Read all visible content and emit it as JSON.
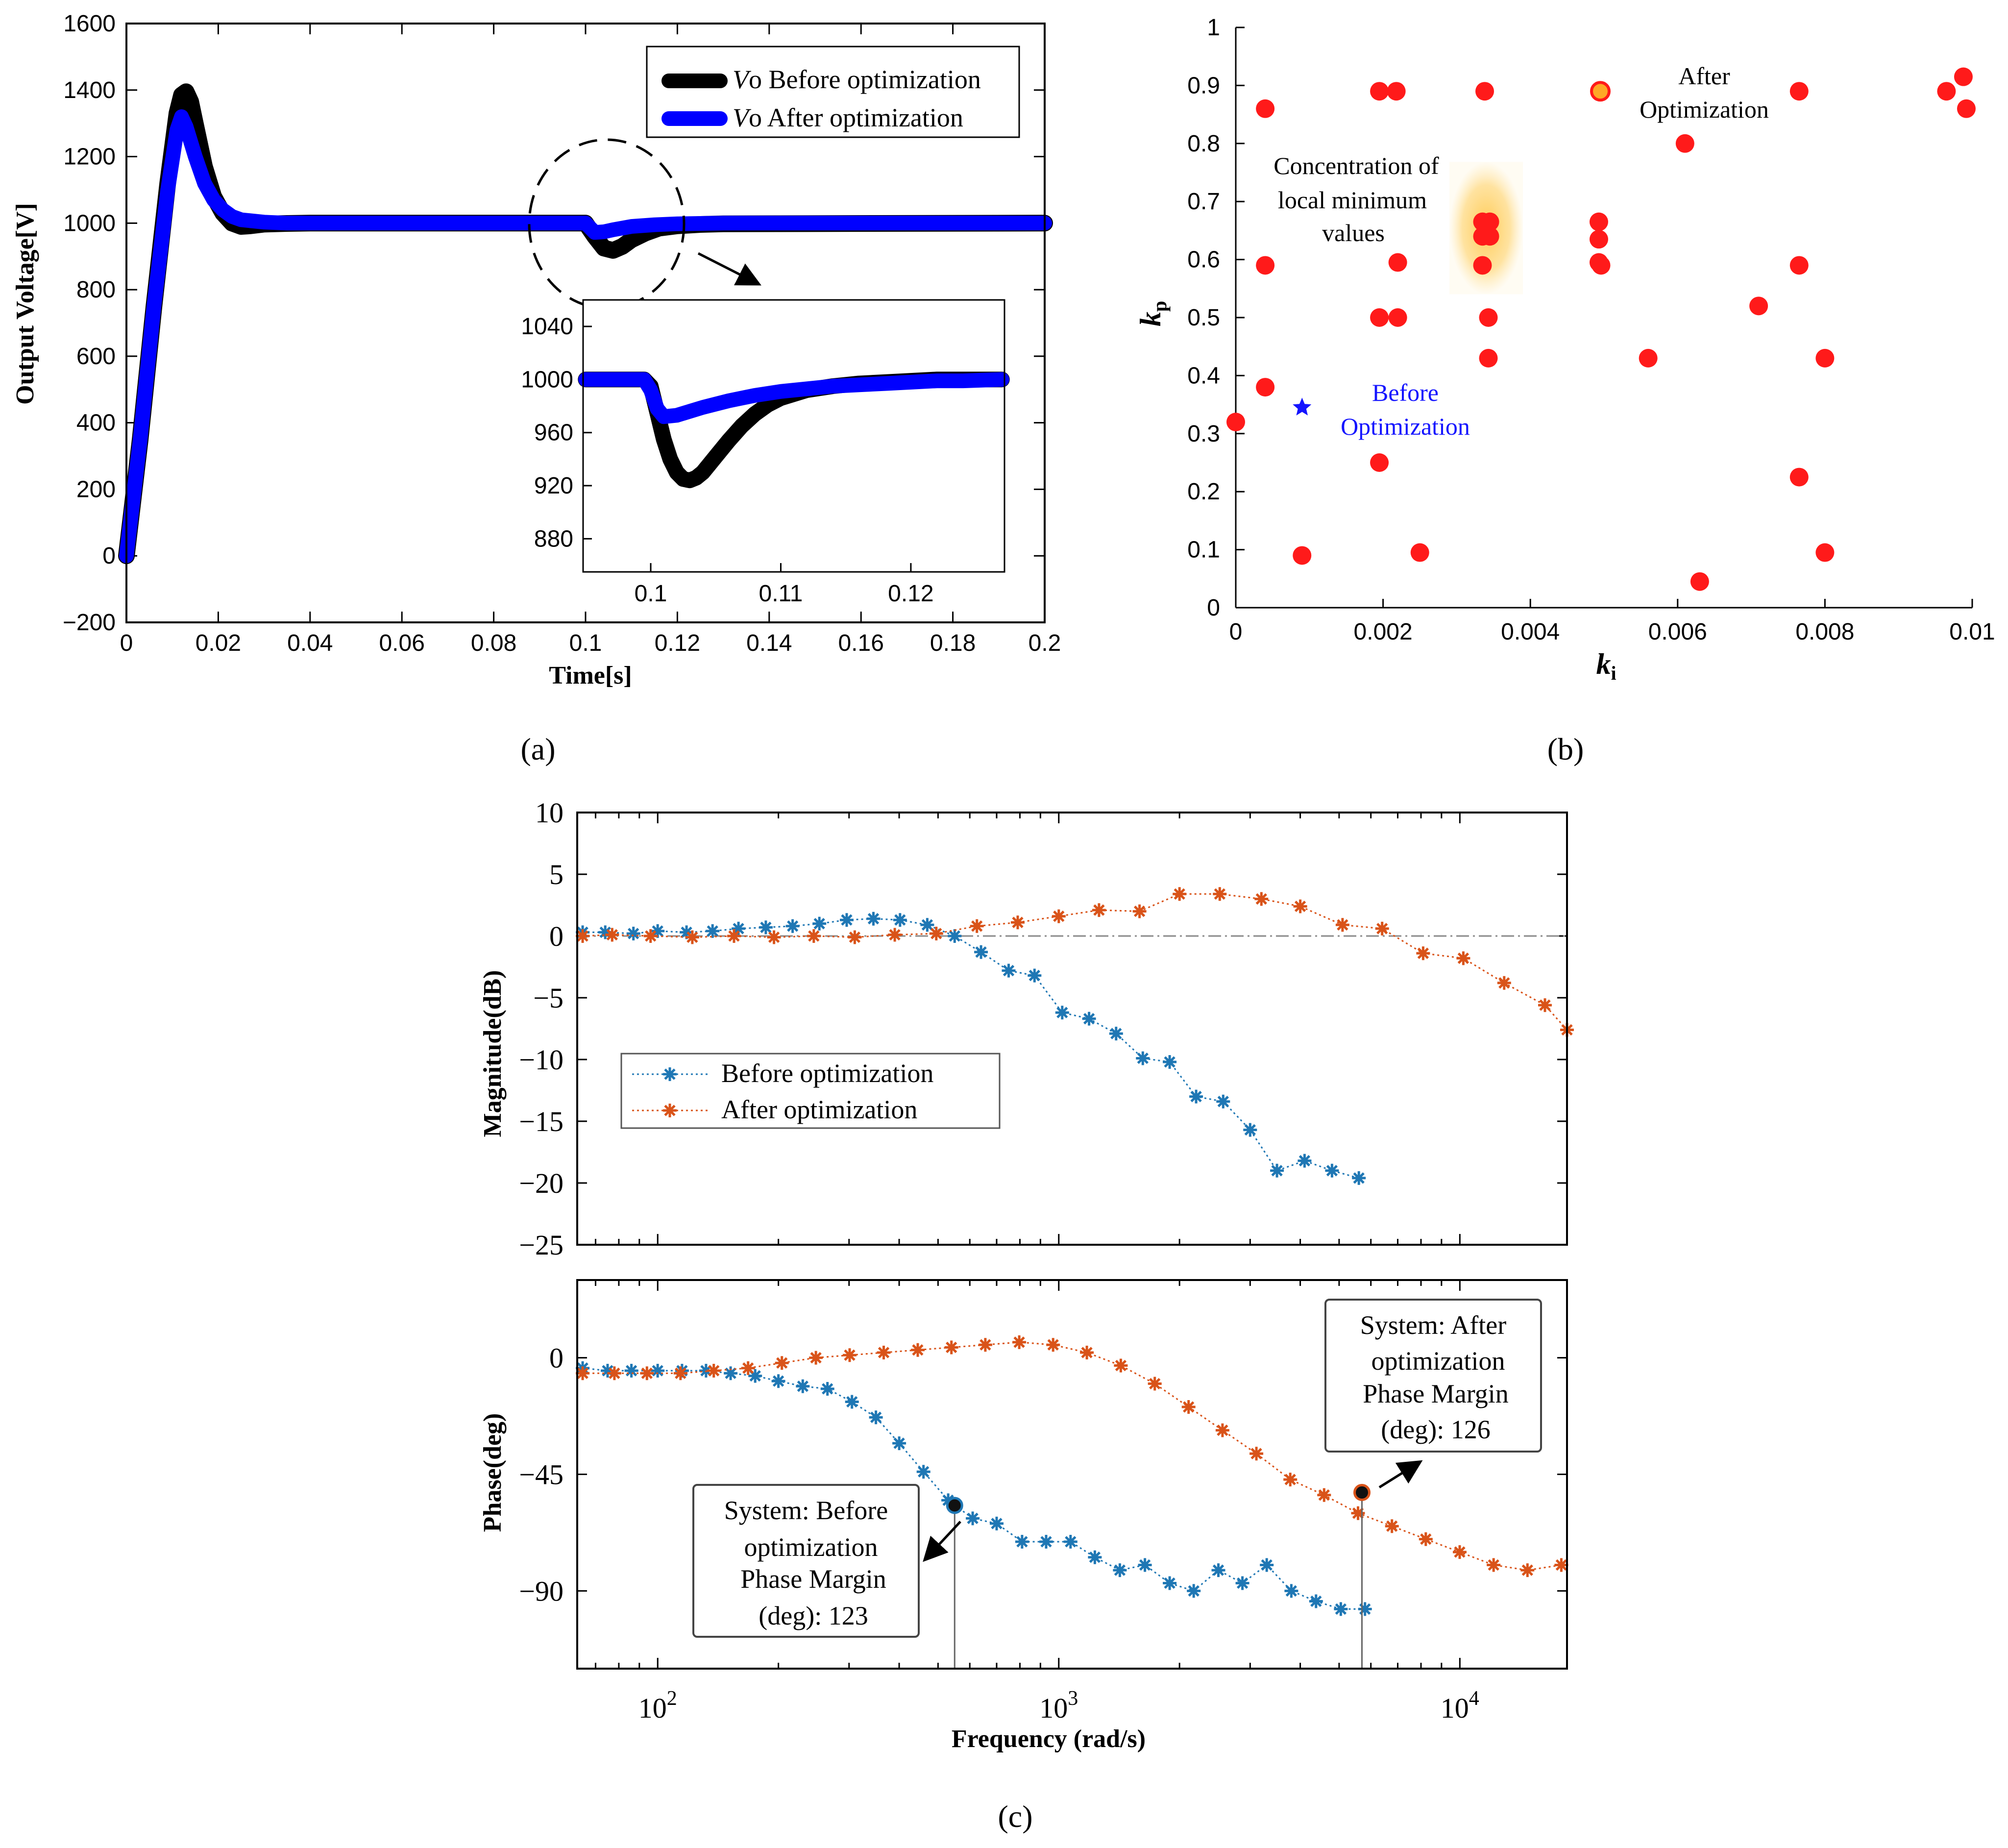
{
  "chart_data": [
    {
      "panel": "a",
      "panel_label": "(a)",
      "type": "line",
      "xlabel": "Time[s]",
      "ylabel": "Output Voltage[V]",
      "xlim": [
        0,
        0.2
      ],
      "ylim": [
        -200,
        1600
      ],
      "xticks": [
        0,
        0.02,
        0.04,
        0.06,
        0.08,
        0.1,
        0.12,
        0.14,
        0.16,
        0.18,
        0.2
      ],
      "xtick_labels": [
        "0",
        "0.02",
        "0.04",
        "0.06",
        "0.08",
        "0.1",
        "0.12",
        "0.14",
        "0.16",
        "0.18",
        "0.2"
      ],
      "yticks": [
        -200,
        0,
        200,
        400,
        600,
        800,
        1000,
        1200,
        1400,
        1600
      ],
      "ytick_labels": [
        "−200",
        "0",
        "200",
        "400",
        "600",
        "800",
        "1000",
        "1200",
        "1400",
        "1600"
      ],
      "legend_position": "top-right",
      "series": [
        {
          "name": "Vo Before optimization",
          "legend_italic": "V",
          "legend_rest": "o Before optimization",
          "color": "#000000",
          "x": [
            0,
            0.003,
            0.006,
            0.009,
            0.011,
            0.012,
            0.013,
            0.014,
            0.015,
            0.017,
            0.019,
            0.021,
            0.023,
            0.025,
            0.027,
            0.03,
            0.035,
            0.04,
            0.06,
            0.08,
            0.1,
            0.1,
            0.102,
            0.104,
            0.106,
            0.108,
            0.11,
            0.113,
            0.116,
            0.12,
            0.125,
            0.13,
            0.2
          ],
          "y": [
            0,
            350,
            750,
            1120,
            1330,
            1385,
            1395,
            1365,
            1300,
            1170,
            1080,
            1030,
            1000,
            990,
            992,
            997,
            999,
            1000,
            1000,
            1000,
            1000,
            1000,
            960,
            925,
            918,
            930,
            950,
            970,
            985,
            992,
            996,
            998,
            1000
          ]
        },
        {
          "name": "Vo After optimization",
          "legend_italic": "V",
          "legend_rest": "o After optimization",
          "color": "#0000ff",
          "x": [
            0,
            0.003,
            0.006,
            0.009,
            0.011,
            0.012,
            0.013,
            0.015,
            0.017,
            0.019,
            0.021,
            0.023,
            0.025,
            0.03,
            0.035,
            0.04,
            0.06,
            0.08,
            0.1,
            0.1,
            0.102,
            0.104,
            0.106,
            0.108,
            0.11,
            0.115,
            0.12,
            0.13,
            0.2
          ],
          "y": [
            0,
            350,
            750,
            1100,
            1280,
            1320,
            1290,
            1200,
            1120,
            1070,
            1040,
            1020,
            1010,
            1003,
            1000,
            1000,
            1000,
            1000,
            1000,
            1000,
            972,
            974,
            980,
            985,
            990,
            995,
            998,
            1000,
            1000
          ]
        }
      ],
      "inset": {
        "xlim": [
          0.0948,
          0.1272
        ],
        "ylim": [
          855,
          1060
        ],
        "xticks": [
          0.1,
          0.11,
          0.12
        ],
        "xtick_labels": [
          "0.1",
          "0.11",
          "0.12"
        ],
        "yticks": [
          880,
          920,
          960,
          1000,
          1040
        ],
        "ytick_labels": [
          "880",
          "920",
          "960",
          "1000",
          "1040"
        ],
        "series": [
          {
            "name": "Vo Before optimization",
            "color": "#000000",
            "x": [
              0.095,
              0.0995,
              0.1,
              0.1005,
              0.101,
              0.1015,
              0.102,
              0.1025,
              0.103,
              0.1035,
              0.104,
              0.1045,
              0.105,
              0.106,
              0.107,
              0.108,
              0.109,
              0.11,
              0.112,
              0.114,
              0.116,
              0.118,
              0.12,
              0.122,
              0.124,
              0.127
            ],
            "y": [
              1000,
              1000,
              995,
              975,
              955,
              940,
              930,
              925,
              924,
              926,
              930,
              936,
              942,
              954,
              965,
              974,
              981,
              986,
              992,
              995,
              997,
              998,
              999,
              1000,
              1000,
              1000
            ]
          },
          {
            "name": "Vo After optimization",
            "color": "#0000ff",
            "x": [
              0.095,
              0.0995,
              0.1,
              0.1005,
              0.101,
              0.102,
              0.103,
              0.104,
              0.106,
              0.108,
              0.11,
              0.112,
              0.114,
              0.116,
              0.118,
              0.12,
              0.122,
              0.124,
              0.127
            ],
            "y": [
              1000,
              1000,
              992,
              978,
              972,
              973,
              976,
              979,
              984,
              988,
              991,
              993,
              995,
              996,
              997,
              998,
              999,
              999,
              1000
            ]
          }
        ]
      }
    },
    {
      "panel": "b",
      "panel_label": "(b)",
      "type": "scatter",
      "xlabel_main": "k",
      "xlabel_sub": "i",
      "ylabel_main": "k",
      "ylabel_sub": "p",
      "xlim": [
        0,
        0.01
      ],
      "ylim": [
        0,
        1
      ],
      "xticks": [
        0,
        0.002,
        0.004,
        0.006,
        0.008,
        0.01
      ],
      "xtick_labels": [
        "0",
        "0.002",
        "0.004",
        "0.006",
        "0.008",
        "0.01"
      ],
      "yticks": [
        0,
        0.1,
        0.2,
        0.3,
        0.4,
        0.5,
        0.6,
        0.7,
        0.8,
        0.9,
        1
      ],
      "ytick_labels": [
        "0",
        "0.1",
        "0.2",
        "0.3",
        "0.4",
        "0.5",
        "0.6",
        "0.7",
        "0.8",
        "0.9",
        "1"
      ],
      "red_points": [
        [
          0.0004,
          0.86
        ],
        [
          0.00195,
          0.89
        ],
        [
          0.00218,
          0.89
        ],
        [
          0.00338,
          0.89
        ],
        [
          0.00495,
          0.89
        ],
        [
          0.00765,
          0.89
        ],
        [
          0.00965,
          0.89
        ],
        [
          0.00988,
          0.915
        ],
        [
          0.00992,
          0.86
        ],
        [
          0.0061,
          0.8
        ],
        [
          0.0004,
          0.59
        ],
        [
          0.0022,
          0.595
        ],
        [
          0.00335,
          0.59
        ],
        [
          0.00335,
          0.665
        ],
        [
          0.00345,
          0.665
        ],
        [
          0.00335,
          0.64
        ],
        [
          0.00345,
          0.64
        ],
        [
          0.0034,
          0.655
        ],
        [
          0.00493,
          0.665
        ],
        [
          0.00493,
          0.635
        ],
        [
          0.00493,
          0.595
        ],
        [
          0.00496,
          0.59
        ],
        [
          0.00765,
          0.59
        ],
        [
          0.00195,
          0.5
        ],
        [
          0.0022,
          0.5
        ],
        [
          0.00343,
          0.5
        ],
        [
          0.0071,
          0.52
        ],
        [
          0.00343,
          0.43
        ],
        [
          0.0056,
          0.43
        ],
        [
          0.008,
          0.43
        ],
        [
          0.0004,
          0.38
        ],
        [
          0.0,
          0.32
        ],
        [
          0.00195,
          0.25
        ],
        [
          0.00765,
          0.225
        ],
        [
          0.0009,
          0.09
        ],
        [
          0.0025,
          0.095
        ],
        [
          0.0063,
          0.045
        ],
        [
          0.008,
          0.095
        ]
      ],
      "before_point": [
        0.0009,
        0.345
      ],
      "after_point": [
        0.00495,
        0.89
      ],
      "highlight_center": [
        0.0034,
        0.65
      ],
      "annotations": {
        "after": [
          "After",
          "Optimization"
        ],
        "before": [
          "Before",
          "Optimization"
        ],
        "concentration": [
          "Concentration of",
          "local minimum",
          "values"
        ]
      },
      "colors": {
        "red": "#ff1a1a",
        "before": "#1414ff",
        "after": "#ffa726",
        "highlight": "#ffc84a",
        "before_text": "#1414ff"
      }
    },
    {
      "panel": "c",
      "panel_label": "(c)",
      "type": "line",
      "xlabel": "Frequency  (rad/s)",
      "xscale": "log",
      "xlim": [
        63,
        18500
      ],
      "xtick_base": "10",
      "xtick_exponents": [
        "2",
        "3",
        "4"
      ],
      "xtick_values": [
        100,
        1000,
        10000
      ],
      "magnitude": {
        "ylabel": "Magnitude(dB)",
        "ylim": [
          -25,
          10
        ],
        "yticks": [
          -25,
          -20,
          -15,
          -10,
          -5,
          0,
          5,
          10
        ],
        "ytick_labels": [
          "−25",
          "−20",
          "−15",
          "−10",
          "−5",
          "0",
          "5",
          "10"
        ],
        "legend": [
          "Before optimization",
          "After optimization"
        ],
        "legend_position": "lower-left",
        "before": {
          "x": [
            65,
            74,
            87,
            100,
            118,
            137,
            159,
            186,
            217,
            253,
            296,
            345,
            402,
            470,
            550,
            640,
            750,
            870,
            1020,
            1190,
            1390,
            1620,
            1890,
            2200,
            2570,
            3000,
            3500,
            4100,
            4800,
            5600
          ],
          "y": [
            0.3,
            0.3,
            0.2,
            0.4,
            0.3,
            0.4,
            0.6,
            0.7,
            0.8,
            1.0,
            1.3,
            1.4,
            1.3,
            0.9,
            0.0,
            -1.3,
            -2.8,
            -3.2,
            -6.2,
            -6.7,
            -7.9,
            -9.9,
            -10.2,
            -13.0,
            -13.4,
            -15.7,
            -19.0,
            -18.2,
            -19.0,
            -19.6
          ]
        },
        "after": {
          "x": [
            65,
            77,
            96,
            122,
            155,
            195,
            245,
            310,
            390,
            495,
            625,
            790,
            1000,
            1260,
            1590,
            2000,
            2520,
            3200,
            4000,
            5100,
            6400,
            8100,
            10200,
            12900,
            16300,
            18500
          ],
          "y": [
            0.0,
            0.1,
            0.0,
            -0.1,
            0.0,
            -0.1,
            0.0,
            -0.1,
            0.1,
            0.2,
            0.8,
            1.1,
            1.6,
            2.1,
            2.0,
            3.4,
            3.4,
            3.0,
            2.4,
            0.9,
            0.6,
            -1.4,
            -1.8,
            -3.8,
            -5.6,
            -7.6
          ]
        }
      },
      "phase": {
        "ylabel": "Phase(deg)",
        "ylim": [
          -120,
          30
        ],
        "yticks": [
          -90,
          -45,
          0
        ],
        "ytick_labels": [
          "−90",
          "−45",
          "0"
        ],
        "before": {
          "x": [
            65,
            75,
            86,
            100,
            115,
            132,
            152,
            175,
            200,
            230,
            265,
            305,
            350,
            400,
            460,
            530,
            610,
            700,
            810,
            930,
            1070,
            1230,
            1420,
            1640,
            1890,
            2170,
            2500,
            2870,
            3300,
            3800,
            4380,
            5050,
            5800
          ],
          "y": [
            -4,
            -5,
            -5,
            -5,
            -5,
            -5,
            -6,
            -7,
            -9,
            -11,
            -12,
            -17,
            -23,
            -33,
            -44,
            -55,
            -62,
            -64,
            -71,
            -71,
            -71,
            -77,
            -82,
            -80,
            -87,
            -90,
            -82,
            -87,
            -80,
            -90,
            -94,
            -97,
            -97
          ]
        },
        "after": {
          "x": [
            65,
            78,
            94,
            114,
            138,
            168,
            204,
            248,
            301,
            366,
            445,
            540,
            656,
            797,
            968,
            1175,
            1428,
            1735,
            2107,
            2560,
            3110,
            3777,
            4588,
            5574,
            6771,
            8225,
            9991,
            12137,
            14743,
            17908
          ],
          "y": [
            -6,
            -6,
            -6,
            -6,
            -5,
            -4,
            -2,
            0,
            1,
            2,
            3,
            4,
            5,
            6,
            5,
            2,
            -3,
            -10,
            -19,
            -28,
            -37,
            -47,
            -53,
            -60,
            -65,
            -70,
            -75,
            -80,
            -82,
            -80
          ]
        },
        "markers": [
          {
            "x": 550,
            "y": -57
          },
          {
            "x": 5700,
            "y": -52
          }
        ],
        "annotations": {
          "before": [
            "System: Before",
            "optimization",
            "Phase Margin",
            "(deg): 123"
          ],
          "after": [
            "System: After",
            "optimization",
            "Phase Margin",
            "(deg): 126"
          ]
        }
      },
      "colors": {
        "before": "#1f77b4",
        "after": "#d95319",
        "zero_line": "#888888"
      }
    }
  ]
}
